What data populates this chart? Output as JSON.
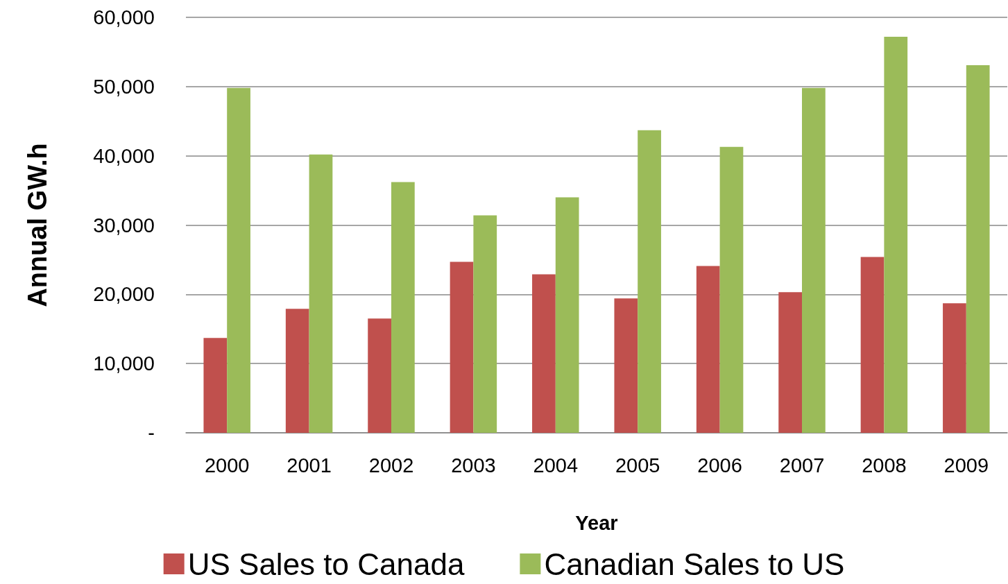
{
  "chart_data": {
    "type": "bar",
    "xlabel": "Year",
    "ylabel": "Annual GW.h",
    "categories": [
      "2000",
      "2001",
      "2002",
      "2003",
      "2004",
      "2005",
      "2006",
      "2007",
      "2008",
      "2009"
    ],
    "series": [
      {
        "name": "US Sales to Canada",
        "color": "#c0504d",
        "values": [
          13700,
          17900,
          16500,
          24700,
          22900,
          19400,
          24100,
          20300,
          25400,
          18700
        ]
      },
      {
        "name": "Canadian Sales to US",
        "color": "#9bbb59",
        "values": [
          49800,
          40200,
          36200,
          31400,
          34000,
          43700,
          41300,
          49800,
          57200,
          53100
        ]
      }
    ],
    "ylim": [
      0,
      60000
    ],
    "yticks": [
      {
        "value": 0,
        "label": "-"
      },
      {
        "value": 10000,
        "label": "10,000"
      },
      {
        "value": 20000,
        "label": "20,000"
      },
      {
        "value": 30000,
        "label": "30,000"
      },
      {
        "value": 40000,
        "label": "40,000"
      },
      {
        "value": 50000,
        "label": "50,000"
      },
      {
        "value": 60000,
        "label": "60,000"
      }
    ],
    "grid": "y",
    "legend": "bottom"
  }
}
